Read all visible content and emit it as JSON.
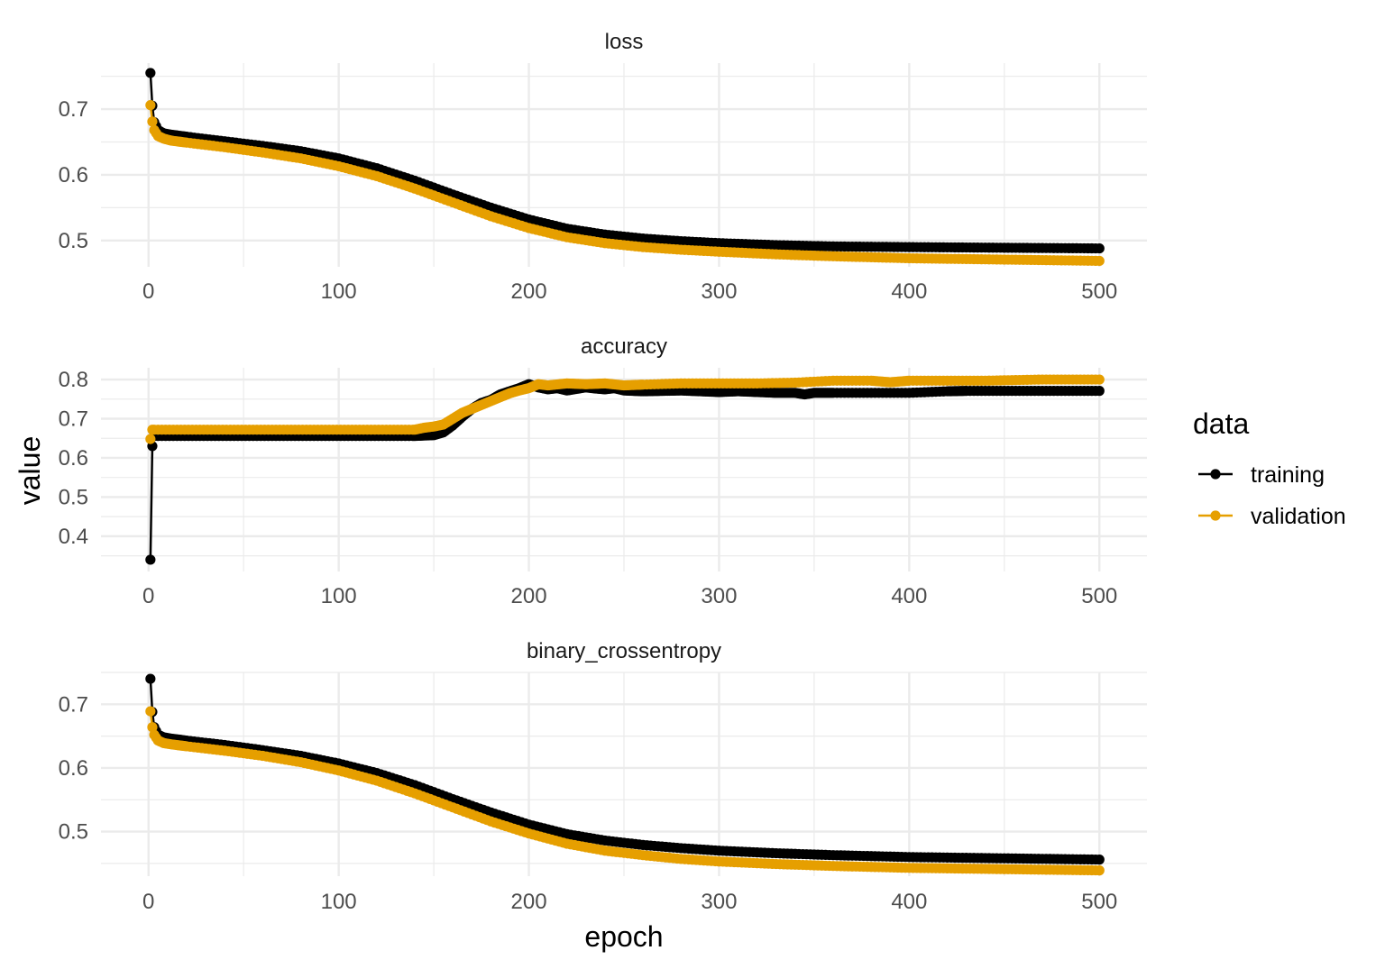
{
  "chart_data": {
    "type": "line",
    "xlabel": "epoch",
    "ylabel": "value",
    "xlim": [
      -25,
      525
    ],
    "x_ticks": [
      0,
      100,
      200,
      300,
      400,
      500
    ],
    "x_tick_labels": [
      "0",
      "100",
      "200",
      "300",
      "400",
      "500"
    ],
    "grid": true,
    "legend": {
      "title": "data",
      "position": "right",
      "entries": [
        {
          "label": "training",
          "color": "#000000"
        },
        {
          "label": "validation",
          "color": "#E69F00"
        }
      ]
    },
    "panels": [
      {
        "title": "loss",
        "ylim": [
          0.46,
          0.77
        ],
        "y_ticks": [
          0.5,
          0.6,
          0.7
        ],
        "y_tick_labels": [
          "0.5",
          "0.6",
          "0.7"
        ],
        "series": [
          {
            "name": "training",
            "color": "#000000",
            "x": [
              1,
              2,
              3,
              5,
              8,
              12,
              20,
              40,
              60,
              80,
              100,
              120,
              140,
              160,
              180,
              200,
              220,
              240,
              260,
              280,
              300,
              330,
              360,
              400,
              450,
              500
            ],
            "y": [
              0.755,
              0.705,
              0.68,
              0.668,
              0.663,
              0.661,
              0.658,
              0.651,
              0.644,
              0.636,
              0.625,
              0.61,
              0.591,
              0.57,
              0.55,
              0.532,
              0.518,
              0.509,
              0.503,
              0.499,
              0.496,
              0.493,
              0.491,
              0.49,
              0.489,
              0.488
            ]
          },
          {
            "name": "validation",
            "color": "#E69F00",
            "x": [
              1,
              2,
              3,
              5,
              8,
              12,
              20,
              40,
              60,
              80,
              100,
              120,
              140,
              160,
              180,
              200,
              220,
              240,
              260,
              280,
              300,
              330,
              360,
              400,
              450,
              500
            ],
            "y": [
              0.706,
              0.681,
              0.668,
              0.659,
              0.655,
              0.652,
              0.649,
              0.642,
              0.634,
              0.625,
              0.613,
              0.598,
              0.579,
              0.558,
              0.537,
              0.519,
              0.505,
              0.496,
              0.49,
              0.486,
              0.483,
              0.479,
              0.476,
              0.473,
              0.471,
              0.469
            ]
          }
        ]
      },
      {
        "title": "accuracy",
        "ylim": [
          0.31,
          0.83
        ],
        "y_ticks": [
          0.4,
          0.5,
          0.6,
          0.7,
          0.8
        ],
        "y_tick_labels": [
          "0.4",
          "0.5",
          "0.6",
          "0.7",
          "0.8"
        ],
        "series": [
          {
            "name": "training",
            "color": "#000000",
            "x": [
              1,
              2,
              3,
              140,
              150,
              155,
              160,
              165,
              170,
              175,
              180,
              185,
              190,
              195,
              200,
              205,
              210,
              215,
              220,
              225,
              230,
              235,
              240,
              245,
              250,
              260,
              270,
              280,
              290,
              300,
              310,
              320,
              330,
              340,
              345,
              350,
              360,
              380,
              400,
              420,
              430,
              500
            ],
            "y": [
              0.34,
              0.63,
              0.656,
              0.656,
              0.658,
              0.665,
              0.683,
              0.705,
              0.725,
              0.74,
              0.748,
              0.762,
              0.77,
              0.778,
              0.788,
              0.78,
              0.775,
              0.778,
              0.772,
              0.776,
              0.78,
              0.777,
              0.775,
              0.778,
              0.772,
              0.77,
              0.771,
              0.772,
              0.77,
              0.768,
              0.77,
              0.768,
              0.766,
              0.766,
              0.762,
              0.766,
              0.766,
              0.766,
              0.766,
              0.77,
              0.771,
              0.771
            ]
          },
          {
            "name": "validation",
            "color": "#E69F00",
            "x": [
              1,
              2,
              3,
              140,
              145,
              150,
              155,
              160,
              165,
              170,
              175,
              180,
              185,
              190,
              195,
              200,
              205,
              210,
              220,
              230,
              240,
              250,
              260,
              280,
              300,
              320,
              340,
              360,
              380,
              390,
              400,
              440,
              470,
              500
            ],
            "y": [
              0.648,
              0.672,
              0.672,
              0.672,
              0.677,
              0.68,
              0.685,
              0.7,
              0.715,
              0.725,
              0.735,
              0.745,
              0.755,
              0.765,
              0.772,
              0.778,
              0.788,
              0.785,
              0.79,
              0.788,
              0.79,
              0.785,
              0.787,
              0.79,
              0.79,
              0.79,
              0.792,
              0.797,
              0.797,
              0.793,
              0.797,
              0.797,
              0.8,
              0.8
            ]
          }
        ]
      },
      {
        "title": "binary_crossentropy",
        "ylim": [
          0.43,
          0.75
        ],
        "y_ticks": [
          0.5,
          0.6,
          0.7
        ],
        "y_tick_labels": [
          "0.5",
          "0.6",
          "0.7"
        ],
        "series": [
          {
            "name": "training",
            "color": "#000000",
            "x": [
              1,
              2,
              3,
              5,
              8,
              12,
              20,
              40,
              60,
              80,
              100,
              120,
              140,
              160,
              180,
              200,
              220,
              240,
              260,
              280,
              300,
              330,
              360,
              400,
              450,
              500
            ],
            "y": [
              0.74,
              0.688,
              0.664,
              0.652,
              0.648,
              0.646,
              0.643,
              0.636,
              0.628,
              0.619,
              0.607,
              0.592,
              0.573,
              0.551,
              0.53,
              0.511,
              0.496,
              0.486,
              0.479,
              0.474,
              0.47,
              0.466,
              0.463,
              0.46,
              0.458,
              0.456
            ]
          },
          {
            "name": "validation",
            "color": "#E69F00",
            "x": [
              1,
              2,
              3,
              5,
              8,
              12,
              20,
              40,
              60,
              80,
              100,
              120,
              140,
              160,
              180,
              200,
              220,
              240,
              260,
              280,
              300,
              330,
              360,
              400,
              450,
              500
            ],
            "y": [
              0.689,
              0.664,
              0.652,
              0.643,
              0.639,
              0.637,
              0.634,
              0.627,
              0.619,
              0.609,
              0.596,
              0.58,
              0.56,
              0.538,
              0.516,
              0.497,
              0.481,
              0.47,
              0.463,
              0.457,
              0.453,
              0.449,
              0.446,
              0.443,
              0.441,
              0.439
            ]
          }
        ]
      }
    ]
  }
}
